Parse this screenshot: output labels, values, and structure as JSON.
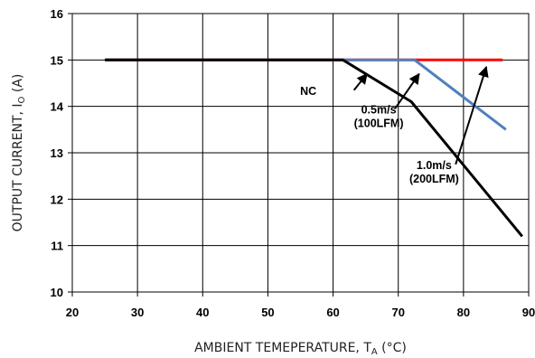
{
  "chart_data": {
    "type": "line",
    "xlabel": "AMBIENT TEMEPERATURE, T",
    "xlabel_sub": "A",
    "xlabel_unit": " (°C)",
    "ylabel": "OUTPUT CURRENT, I",
    "ylabel_sub": "O",
    "ylabel_unit": " (A)",
    "xlim": [
      20,
      90
    ],
    "ylim": [
      10,
      16
    ],
    "xticks": [
      "20",
      "30",
      "40",
      "50",
      "60",
      "70",
      "80",
      "90"
    ],
    "yticks": [
      "10",
      "11",
      "12",
      "13",
      "14",
      "15",
      "16"
    ],
    "grid": true,
    "series": [
      {
        "color": "#ff0000",
        "x": [
          25,
          86
        ],
        "y": [
          15,
          15
        ]
      },
      {
        "color": "#4f81bd",
        "x": [
          25,
          72.5,
          86.5
        ],
        "y": [
          15,
          15,
          13.5
        ]
      },
      {
        "color": "#000000",
        "x": [
          25,
          61.5,
          72,
          89
        ],
        "y": [
          15,
          15,
          14.1,
          11.2
        ]
      }
    ],
    "annotations": [
      {
        "lines": [
          "NC"
        ],
        "text_x": 56.2,
        "text_y": 14.25,
        "arrow_from": [
          63.2,
          14.35
        ],
        "arrow_to": [
          65.2,
          14.7
        ]
      },
      {
        "lines": [
          "0.5m/s",
          "(100LFM)"
        ],
        "text_x": 67.0,
        "text_y": 13.85,
        "arrow_from": [
          69.5,
          13.95
        ],
        "arrow_to": [
          73.2,
          14.7
        ]
      },
      {
        "lines": [
          "1.0m/s",
          "(200LFM)"
        ],
        "text_x": 75.5,
        "text_y": 12.65,
        "arrow_from": [
          78.8,
          12.75
        ],
        "arrow_to": [
          83.5,
          14.85
        ]
      }
    ]
  }
}
